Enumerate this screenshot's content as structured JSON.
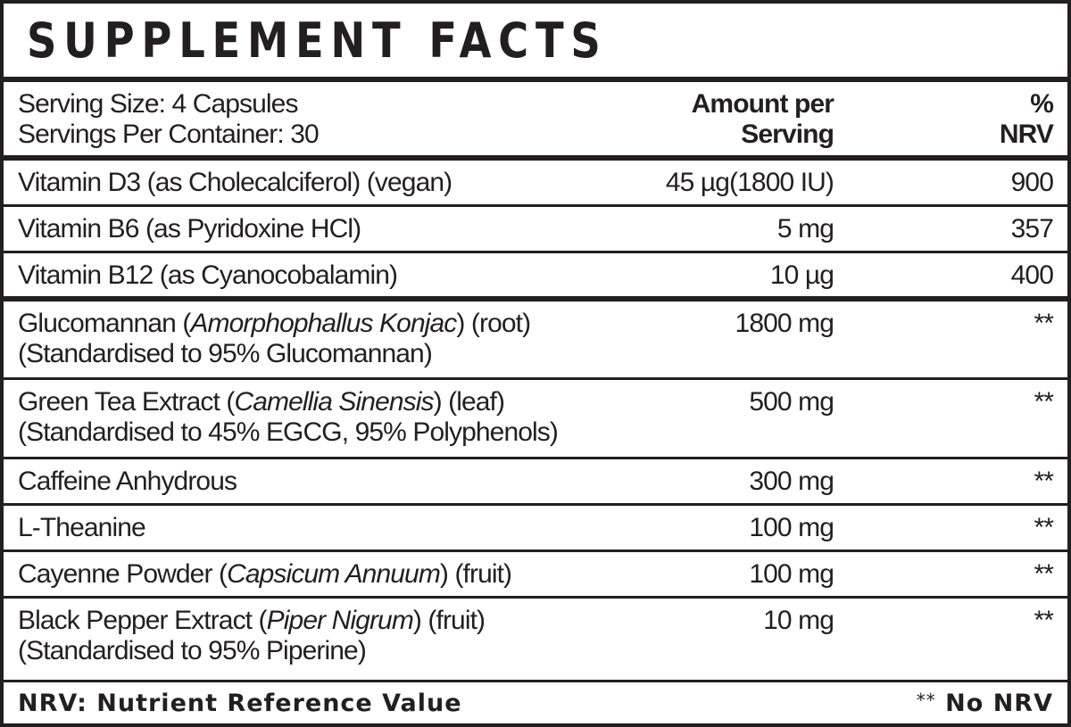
{
  "title": "SUPPLEMENT FACTS",
  "header": {
    "serving_size": "Serving Size: 4 Capsules",
    "servings_per_container": "Servings Per Container: 30",
    "amount_line1": "Amount per",
    "amount_line2": "Serving",
    "nrv_line1": "%",
    "nrv_line2": "NRV"
  },
  "rows": [
    {
      "name": "Vitamin D3 (as Cholecalciferol) (vegan)",
      "amount": "45 µg(1800 IU)",
      "nrv": "900"
    },
    {
      "name": "Vitamin B6 (as Pyridoxine HCl)",
      "amount": "5 mg",
      "nrv": "357"
    },
    {
      "name": "Vitamin B12 (as Cyanocobalamin)",
      "amount": "10 µg",
      "nrv": "400"
    },
    {
      "name_pre": "Glucomannan (",
      "name_italic": "Amorphophallus Konjac",
      "name_post": ") (root)",
      "name_line2": "(Standardised to 95% Glucomannan)",
      "amount": "1800 mg",
      "nrv": "**"
    },
    {
      "name_pre": "Green Tea Extract (",
      "name_italic": "Camellia Sinensis",
      "name_post": ") (leaf)",
      "name_line2": "(Standardised to 45% EGCG, 95% Polyphenols)",
      "amount": "500 mg",
      "nrv": "**"
    },
    {
      "name": "Caffeine Anhydrous",
      "amount": "300 mg",
      "nrv": "**"
    },
    {
      "name": "L-Theanine",
      "amount": "100 mg",
      "nrv": "**"
    },
    {
      "name_pre": "Cayenne Powder (",
      "name_italic": "Capsicum Annuum",
      "name_post": ") (fruit)",
      "amount": "100 mg",
      "nrv": "**"
    },
    {
      "name_pre": "Black Pepper Extract (",
      "name_italic": "Piper Nigrum",
      "name_post": ") (fruit)",
      "name_line2": "(Standardised to 95% Piperine)",
      "amount": "10 mg",
      "nrv": "**"
    }
  ],
  "footer": {
    "left": "NRV: Nutrient Reference Value",
    "right_stars": "**",
    "right_text": "No NRV"
  }
}
